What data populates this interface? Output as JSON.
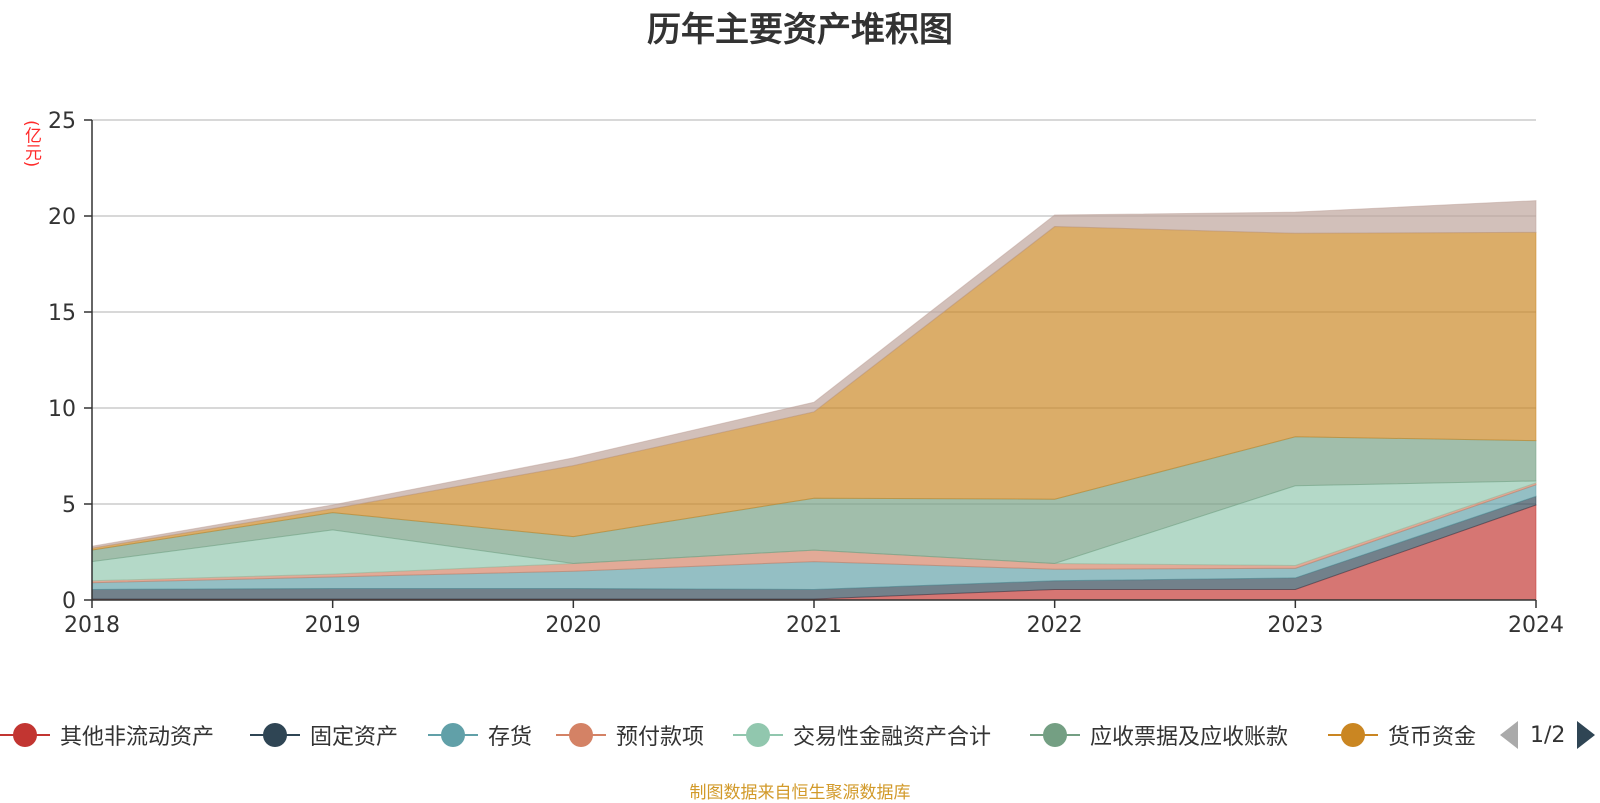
{
  "title": "历年主要资产堆积图",
  "unit_label": "(亿元)",
  "footer": "制图数据来自恒生聚源数据库",
  "pager": {
    "text": "1/2"
  },
  "chart_data": {
    "type": "area",
    "stacked": true,
    "title": "历年主要资产堆积图",
    "ylabel": "(亿元)",
    "ylim": [
      0,
      25
    ],
    "yticks": [
      0,
      5,
      10,
      15,
      20,
      25
    ],
    "grid": true,
    "legend_position": "bottom",
    "categories": [
      "2018",
      "2019",
      "2020",
      "2021",
      "2022",
      "2023",
      "2024"
    ],
    "series": [
      {
        "name": "其他非流动资产",
        "color": "#c23531",
        "values": [
          0.05,
          0.05,
          0.05,
          0.05,
          0.55,
          0.55,
          4.95
        ]
      },
      {
        "name": "固定资产",
        "color": "#2f4554",
        "values": [
          0.5,
          0.55,
          0.55,
          0.5,
          0.45,
          0.6,
          0.45
        ]
      },
      {
        "name": "存货",
        "color": "#61a0a8",
        "values": [
          0.35,
          0.6,
          0.9,
          1.45,
          0.6,
          0.5,
          0.6
        ]
      },
      {
        "name": "预付款项",
        "color": "#d48265",
        "values": [
          0.1,
          0.15,
          0.4,
          0.6,
          0.3,
          0.15,
          0.1
        ]
      },
      {
        "name": "交易性金融资产合计",
        "color": "#91c7ae",
        "values": [
          1.0,
          2.3,
          0.0,
          0.0,
          0.0,
          4.15,
          0.1
        ]
      },
      {
        "name": "应收票据及应收账款",
        "color": "#749f83",
        "values": [
          0.6,
          0.9,
          1.4,
          2.7,
          3.35,
          2.55,
          2.1
        ]
      },
      {
        "name": "货币资金",
        "color": "#ca8622",
        "values": [
          0.1,
          0.2,
          3.7,
          4.5,
          14.2,
          10.6,
          10.85
        ]
      },
      {
        "name": "",
        "color": "#bda29a",
        "values": [
          0.1,
          0.2,
          0.4,
          0.5,
          0.6,
          1.1,
          1.65
        ]
      }
    ]
  }
}
